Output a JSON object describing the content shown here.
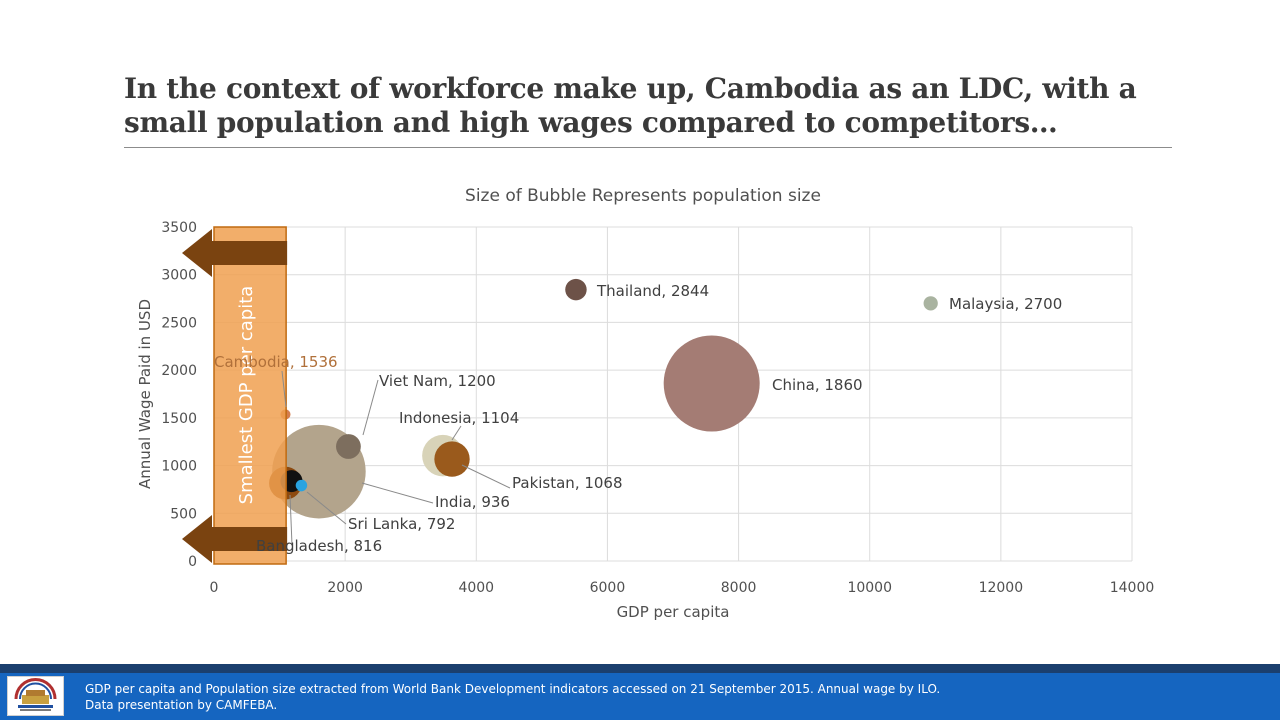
{
  "slide": {
    "title_line1": "In the context of workforce make up, Cambodia as an LDC, with a",
    "title_line2": "small population and high wages compared to competitors…"
  },
  "chart_data": {
    "type": "bubble",
    "title": "Size of Bubble Represents population size",
    "xlabel": "GDP per capita",
    "ylabel": "Annual Wage Paid in USD",
    "xlim": [
      0,
      14000
    ],
    "ylim": [
      0,
      3500
    ],
    "xticks": [
      "0",
      "2000",
      "4000",
      "6000",
      "8000",
      "10000",
      "12000",
      "14000"
    ],
    "yticks": [
      "0",
      "500",
      "1000",
      "1500",
      "2000",
      "2500",
      "3000",
      "3500"
    ],
    "grid": true,
    "legend": "none",
    "points": [
      {
        "name": "China",
        "x": 7590,
        "y": 1860,
        "population_m": 1364,
        "color": "#a47c74",
        "label": "China, 1860"
      },
      {
        "name": "India",
        "x": 1600,
        "y": 936,
        "population_m": 1295,
        "color": "#b3a48c",
        "label": "India, 936"
      },
      {
        "name": "Indonesia",
        "x": 3490,
        "y": 1104,
        "population_m": 254,
        "color": "#d8d3b8",
        "label": "Indonesia, 1104"
      },
      {
        "name": "Pakistan",
        "x": 3630,
        "y": 1068,
        "population_m": 185,
        "color": "#9a5a1c",
        "label": "Pakistan, 1068"
      },
      {
        "name": "Bangladesh",
        "x": 1090,
        "y": 816,
        "population_m": 159,
        "color": "#8c4a10",
        "label": "Bangladesh, 816"
      },
      {
        "name": "Viet Nam",
        "x": 2050,
        "y": 1200,
        "population_m": 91,
        "color": "#7d6e5e",
        "label": "Viet Nam, 1200"
      },
      {
        "name": "Thailand",
        "x": 5520,
        "y": 2844,
        "population_m": 68,
        "color": "#6d5248",
        "label": "Thailand, 2844"
      },
      {
        "name": "Malaysia",
        "x": 10930,
        "y": 2700,
        "population_m": 30,
        "color": "#a9b3a0",
        "label": "Malaysia, 2700"
      },
      {
        "name": "Sri Lanka",
        "x": 1330,
        "y": 792,
        "population_m": 21,
        "color": "#29a3e0",
        "label": "Sri Lanka, 792"
      },
      {
        "name": "Cambodia",
        "x": 1090,
        "y": 1536,
        "population_m": 15,
        "color": "#d47e4e",
        "label": "Cambodia, 1536"
      }
    ],
    "highlight_band": {
      "label": "Smallest GDP per capita",
      "x_from": 0,
      "x_to": 1100,
      "color": "#f0a050"
    }
  },
  "footer": {
    "line1": "GDP per capita and Population size extracted from World Bank Development indicators accessed on 21 September 2015.  Annual wage by ILO.",
    "line2": "Data presentation by CAMFEBA.",
    "logo_icon": "camfeba-logo-icon"
  }
}
